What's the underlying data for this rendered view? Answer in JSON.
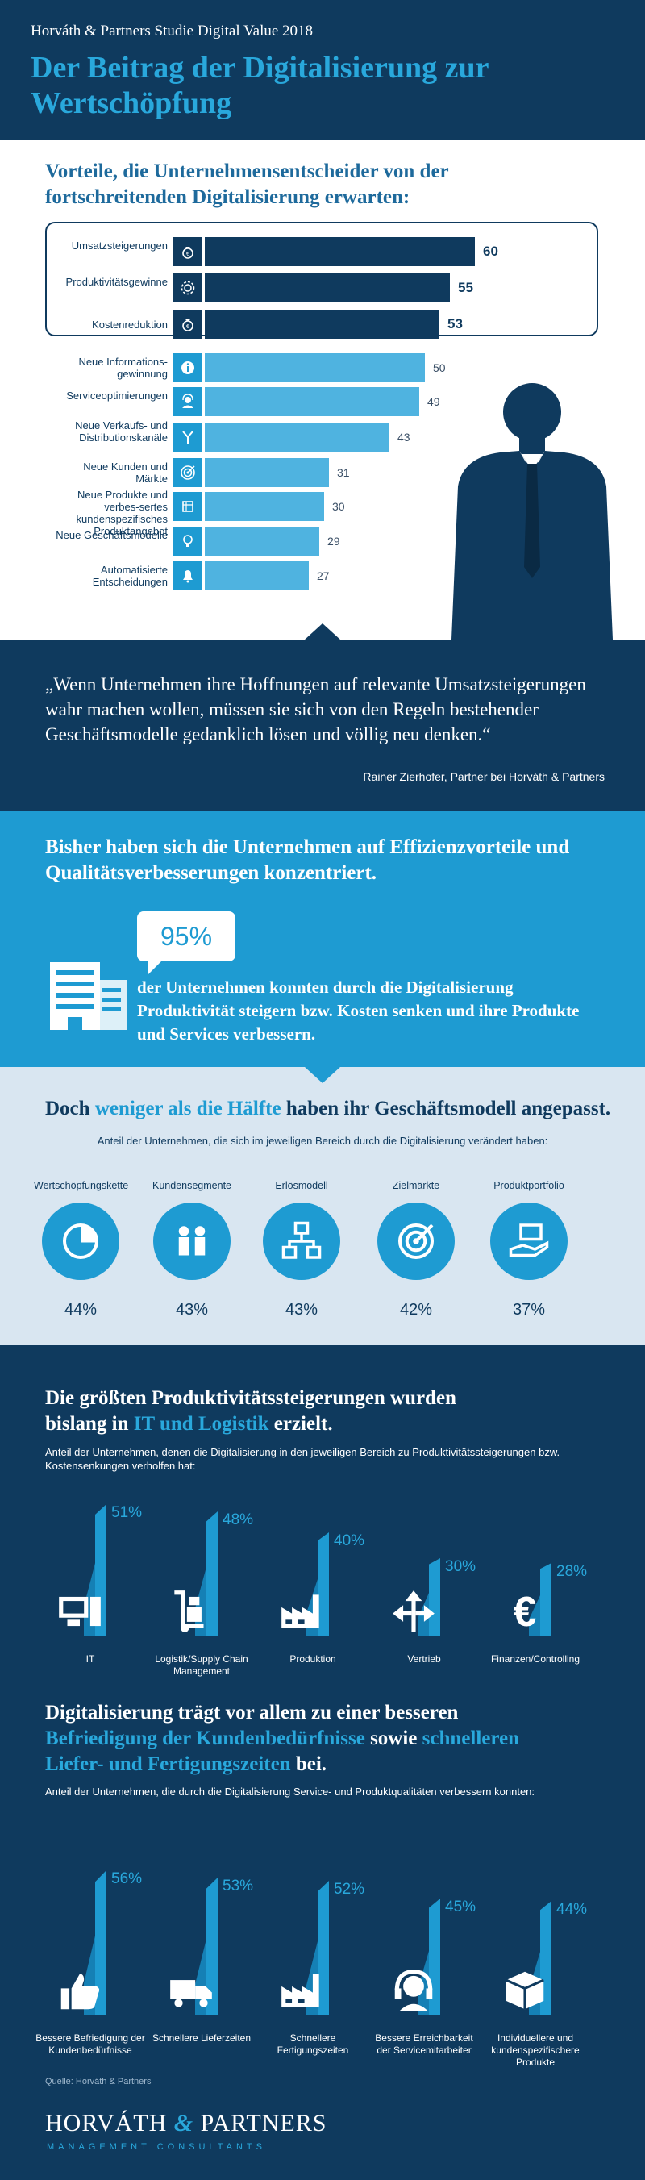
{
  "header": {
    "kicker": "Horváth & Partners Studie Digital Value 2018",
    "title": "Der Beitrag der Digitalisierung zur Wertschöpfung"
  },
  "advantages": {
    "title": "Vorteile, die Unternehmensentscheider von der fortschreitenden Digitalisierung erwarten:"
  },
  "quote": {
    "text": "„Wenn Unternehmen ihre Hoffnungen auf relevante Umsatzsteigerungen wahr machen wollen, müssen sie sich von den Regeln bestehender Geschäftsmodelle gedanklich lösen und völlig neu denken.“",
    "author": "Rainer Zierhofer, Partner bei Horváth & Partners"
  },
  "efficiency": {
    "title": "Bisher haben sich die Unternehmen auf Effizienzvorteile und Qualitätsverbesserungen konzentriert.",
    "percent": "95%",
    "text": "der Unternehmen konnten durch die Digitalisierung Produktivität steigern bzw. Kosten senken und ihre Produkte und Services verbessern."
  },
  "half": {
    "title_pre": "Doch",
    "title_hl": "weniger als die Hälfte",
    "title_post": "haben ihr Geschäftsmodell angepasst.",
    "subtitle": "Anteil der Unternehmen, die sich im jeweiligen Bereich durch die Digitalisierung verändert haben:"
  },
  "productivity": {
    "title_pre": "Die größten Produktivitätssteigerungen wurden bislang in",
    "title_hl": "IT und Logistik",
    "title_post": "erzielt.",
    "subtitle": "Anteil der Unternehmen, denen die Digitalisierung in den jeweiligen Bereich zu Produktivitätssteigerungen bzw. Kostensenkungen verholfen hat:"
  },
  "service": {
    "title_a": "Digitalisierung trägt vor allem zu einer besseren",
    "title_hl1": "Befriedigung der Kundenbedürfnisse",
    "title_b": "sowie",
    "title_hl2": "schnelleren Liefer- und Fertigungszeiten",
    "title_c": "bei.",
    "subtitle": "Anteil der Unternehmen, die durch die Digitalisierung Service- und Produktqualitäten verbessern konnten:"
  },
  "footer": {
    "source": "Quelle: Horváth & Partners",
    "logo_a": "HORVÁTH",
    "logo_amp": "&",
    "logo_b": "PARTNERS",
    "logo_sub": "MANAGEMENT CONSULTANTS"
  },
  "colors": {
    "navy": "#0f3a5e",
    "blue": "#1e9bd2",
    "lightblue": "#4fb3e0",
    "pale": "#d9e6f1"
  },
  "chart_data": [
    {
      "type": "bar",
      "orientation": "horizontal",
      "categories": [
        "Umsatzsteigerungen",
        "Produktivitätsgewinne",
        "Kostenreduktion",
        "Neue Informations-gewinnung",
        "Serviceoptimierungen",
        "Neue Verkaufs- und Distributionskanäle",
        "Neue Kunden und Märkte",
        "Neue Produkte und verbes-sertes kundenspezifisches Produktangebot",
        "Neue Geschäftsmodelle",
        "Automatisierte Entscheidungen"
      ],
      "values": [
        60,
        55,
        53,
        50,
        49,
        43,
        31,
        30,
        29,
        27
      ],
      "icons": [
        "money-bag-icon",
        "gear-icon",
        "money-bag-icon",
        "info-icon",
        "support-agent-icon",
        "channels-icon",
        "target-icon",
        "product-icon",
        "lightbulb-icon",
        "bell-icon"
      ],
      "highlighted": [
        true,
        true,
        true,
        false,
        false,
        false,
        false,
        false,
        false,
        false
      ]
    },
    {
      "type": "table",
      "categories": [
        "Wertschöpfungskette",
        "Kundensegmente",
        "Erlösmodell",
        "Zielmärkte",
        "Produktportfolio"
      ],
      "values": [
        44,
        43,
        43,
        42,
        37
      ],
      "labels": [
        "44%",
        "43%",
        "43%",
        "42%",
        "37%"
      ],
      "icons": [
        "pie-chart-icon",
        "people-icon",
        "flowchart-icon",
        "target-icon",
        "hand-card-icon"
      ]
    },
    {
      "type": "bar",
      "categories": [
        "IT",
        "Logistik/Supply Chain Management",
        "Produktion",
        "Vertrieb",
        "Finanzen/Controlling"
      ],
      "values": [
        51,
        48,
        40,
        30,
        28
      ],
      "labels": [
        "51%",
        "48%",
        "40%",
        "30%",
        "28%"
      ],
      "icons": [
        "computer-icon",
        "hand-truck-icon",
        "factory-icon",
        "directions-icon",
        "euro-icon"
      ]
    },
    {
      "type": "bar",
      "categories": [
        "Bessere Befriedigung der Kundenbedürfnisse",
        "Schnellere Lieferzeiten",
        "Schnellere Fertigungszeiten",
        "Bessere Erreichbarkeit der Servicemitarbeiter",
        "Individuellere und kundenspezifischere Produkte"
      ],
      "values": [
        56,
        53,
        52,
        45,
        44
      ],
      "labels": [
        "56%",
        "53%",
        "52%",
        "45%",
        "44%"
      ],
      "icons": [
        "thumbs-up-icon",
        "delivery-truck-icon",
        "factory-icon",
        "headset-icon",
        "box-icon"
      ]
    }
  ]
}
